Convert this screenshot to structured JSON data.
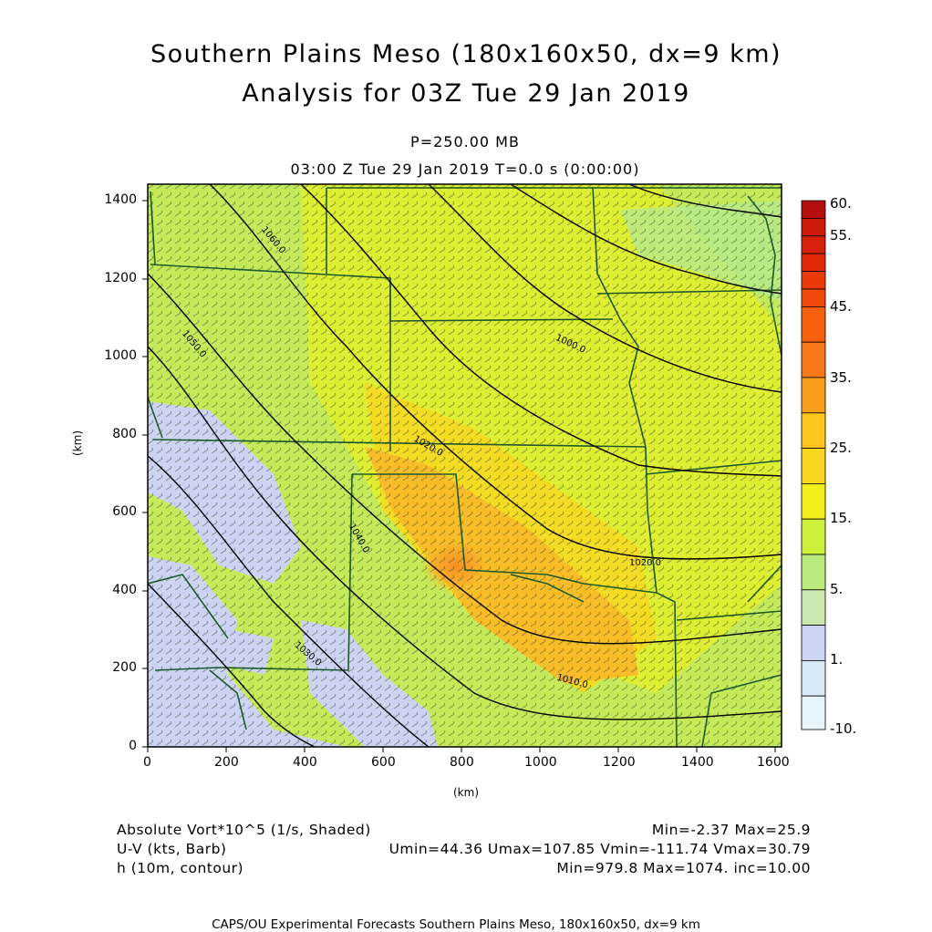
{
  "header": {
    "title_line1": "Southern Plains Meso (180x160x50, dx=9 km)",
    "title_line2": "Analysis for 03Z Tue 29 Jan 2019",
    "pressure_level": "P=250.00 MB",
    "valid_time": "03:00 Z Tue 29 Jan 2019    T=0.0 s (0:00:00)"
  },
  "axes": {
    "x_unit": "(km)",
    "y_unit": "(km)",
    "x_ticks": [
      "0",
      "200",
      "400",
      "600",
      "800",
      "1000",
      "1200",
      "1400",
      "1600"
    ],
    "y_ticks": [
      "0",
      "200",
      "400",
      "600",
      "800",
      "1000",
      "1200",
      "1400"
    ]
  },
  "colorbar": {
    "labels": [
      "60.",
      "55.",
      "45.",
      "35.",
      "25.",
      "15.",
      "5.",
      "1.",
      "-10."
    ],
    "colors": [
      "#b50f0f",
      "#cc1a0a",
      "#e22a08",
      "#f24d0a",
      "#f7781a",
      "#fa9e1e",
      "#fcc41c",
      "#f5e61a",
      "#e0f22c",
      "#c2ee46",
      "#b9ea7e",
      "#cbe9b0",
      "#ccd6f4",
      "#d6e8f6",
      "#e6f4fb"
    ]
  },
  "contour_labels": [
    "1060.0",
    "1050.0",
    "1040.0",
    "1030.0",
    "1020.0",
    "1010.0",
    "1000.0"
  ],
  "info": {
    "shaded_label": "Absolute Vort*10^5 (1/s, Shaded)",
    "shaded_range": "Min=-2.37 Max=25.9",
    "barb_label": "U-V (kts, Barb)",
    "barb_range": "Umin=44.36 Umax=107.85 Vmin=-111.74 Vmax=30.79",
    "contour_label": "h (10m, contour)",
    "contour_range": "Min=979.8 Max=1074. inc=10.00"
  },
  "footer": "CAPS/OU Experimental Forecasts  Southern Plains Meso, 180x160x50, dx=9 km"
}
